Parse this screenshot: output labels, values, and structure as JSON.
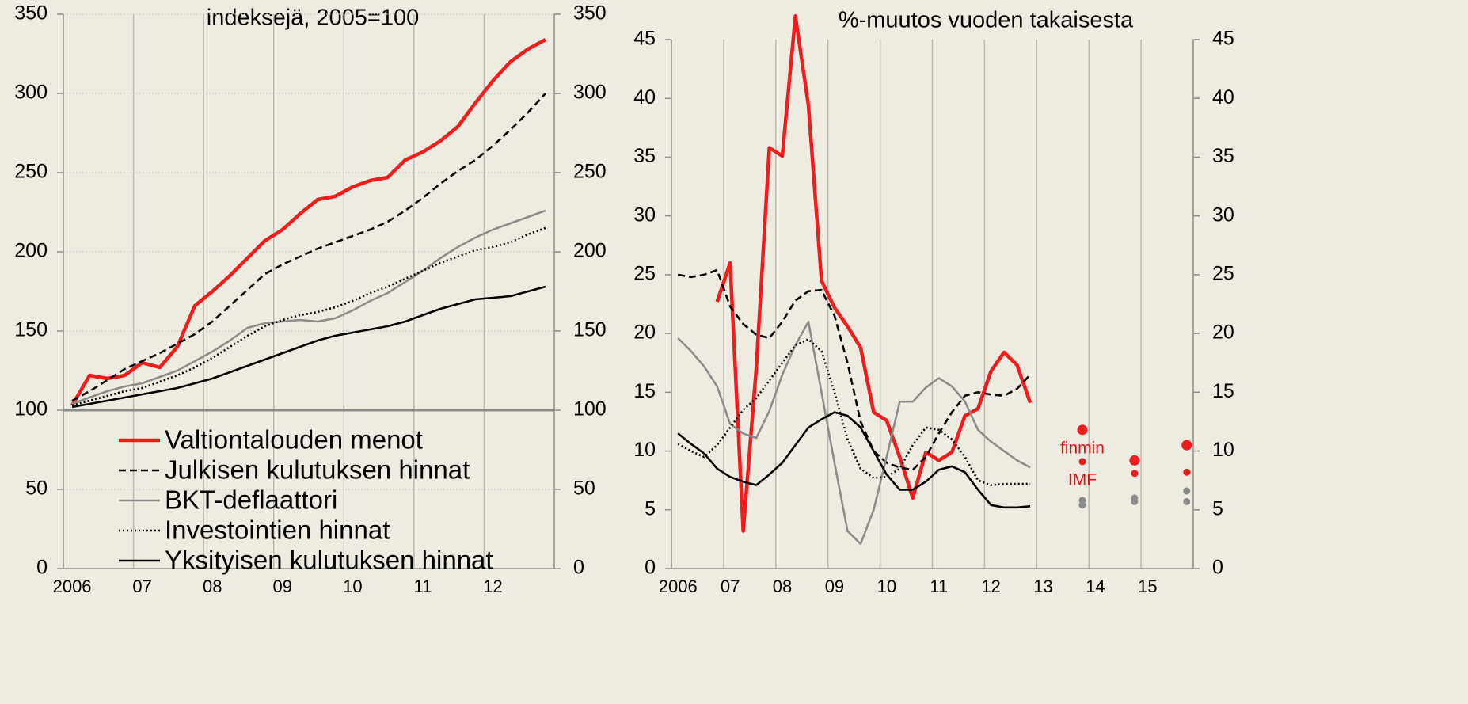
{
  "chart_data": [
    {
      "type": "line",
      "title": "indeksejä, 2005=100",
      "categories": [
        "2006",
        null,
        null,
        null,
        "07",
        null,
        null,
        null,
        "08",
        null,
        null,
        null,
        "09",
        null,
        null,
        null,
        "10",
        null,
        null,
        null,
        "11",
        null,
        null,
        null,
        "12",
        null,
        null,
        null
      ],
      "ylim": [
        0,
        350
      ],
      "yticks": [
        0,
        50,
        100,
        150,
        200,
        250,
        300,
        350
      ],
      "grid": true,
      "baseline": 100,
      "legend": "bottom",
      "series": [
        {
          "name": "Valtiontalouden menot",
          "color": "#f21c1c",
          "style": "solid",
          "width": "thick",
          "values": [
            103,
            122,
            120,
            122,
            130,
            127,
            140,
            166,
            175,
            185,
            196,
            207,
            214,
            224,
            233,
            235,
            241,
            245,
            247,
            258,
            263,
            270,
            279,
            294,
            308,
            320,
            328,
            334
          ]
        },
        {
          "name": "Julkisen kulutuksen hinnat",
          "color": "#000000",
          "style": "dashed",
          "width": "normal",
          "values": [
            106,
            112,
            119,
            126,
            131,
            136,
            142,
            148,
            156,
            166,
            176,
            186,
            192,
            197,
            202,
            206,
            210,
            214,
            219,
            226,
            234,
            243,
            251,
            258,
            267,
            277,
            288,
            300
          ]
        },
        {
          "name": "BKT-deflaattori",
          "color": "#8c8c8c",
          "style": "solid",
          "width": "normal",
          "values": [
            104,
            108,
            112,
            115,
            117,
            121,
            125,
            131,
            137,
            144,
            152,
            155,
            156,
            157,
            156,
            158,
            163,
            169,
            174,
            181,
            188,
            196,
            203,
            209,
            214,
            218,
            222,
            226
          ]
        },
        {
          "name": "Investointien hinnat",
          "color": "#000000",
          "style": "dotted",
          "width": "normal",
          "values": [
            103,
            106,
            109,
            112,
            114,
            118,
            122,
            127,
            133,
            140,
            147,
            153,
            157,
            160,
            162,
            165,
            169,
            174,
            178,
            183,
            188,
            193,
            197,
            201,
            203,
            206,
            211,
            215
          ]
        },
        {
          "name": "Yksityisen kulutuksen hinnat",
          "color": "#000000",
          "style": "solid",
          "width": "normal",
          "values": [
            102,
            104,
            106,
            108,
            110,
            112,
            114,
            117,
            120,
            124,
            128,
            132,
            136,
            140,
            144,
            147,
            149,
            151,
            153,
            156,
            160,
            164,
            167,
            170,
            171,
            172,
            175,
            178
          ]
        }
      ]
    },
    {
      "type": "line",
      "title": "%-muutos vuoden takaisesta",
      "categories": [
        "2006",
        null,
        null,
        null,
        "07",
        null,
        null,
        null,
        "08",
        null,
        null,
        null,
        "09",
        null,
        null,
        null,
        "10",
        null,
        null,
        null,
        "11",
        null,
        null,
        null,
        "12",
        null,
        null,
        null,
        "13",
        null,
        null,
        null,
        "14",
        null,
        null,
        null,
        "15",
        null,
        null,
        null
      ],
      "ylim": [
        0,
        45
      ],
      "yticks": [
        0,
        5,
        10,
        15,
        20,
        25,
        30,
        35,
        40,
        45
      ],
      "grid": false,
      "series": [
        {
          "color": "#f21c1c",
          "style": "solid",
          "width": "thick",
          "values": [
            null,
            null,
            null,
            22.7,
            26,
            3.2,
            17,
            35.8,
            35.1,
            47,
            39.4,
            24.5,
            22.2,
            20.6,
            18.8,
            13.3,
            12.6,
            9.5,
            6,
            9.9,
            9.2,
            9.9,
            13,
            13.6,
            16.8,
            18.4,
            17.3,
            14.1,
            null,
            null,
            null,
            null,
            null,
            null,
            null,
            null,
            null,
            null,
            null,
            null
          ]
        },
        {
          "color": "#000000",
          "style": "dashed",
          "width": "normal",
          "values": [
            25.0,
            24.8,
            25.0,
            25.4,
            22.3,
            20.8,
            19.9,
            19.6,
            21.0,
            22.8,
            23.6,
            23.7,
            21.5,
            17.5,
            12.5,
            10.0,
            9.0,
            8.6,
            8.4,
            9.5,
            11.5,
            13.3,
            14.7,
            15.0,
            14.8,
            14.7,
            15.3,
            16.5,
            null,
            null,
            null,
            null,
            null,
            null,
            null,
            null,
            null,
            null,
            null,
            null
          ]
        },
        {
          "color": "#8c8c8c",
          "style": "solid",
          "width": "normal",
          "values": [
            19.6,
            18.5,
            17.2,
            15.5,
            12.3,
            11.5,
            11.1,
            13.4,
            16.5,
            19,
            21,
            15,
            9,
            3.2,
            2.1,
            5,
            9.5,
            14.2,
            14.2,
            15.4,
            16.2,
            15.5,
            14.2,
            11.8,
            10.8,
            10.0,
            9.2,
            8.6,
            null,
            null,
            null,
            null,
            null,
            null,
            null,
            null,
            null,
            null,
            null,
            null
          ]
        },
        {
          "color": "#000000",
          "style": "dotted",
          "width": "normal",
          "values": [
            10.6,
            10.0,
            9.5,
            10.5,
            12,
            13.5,
            14.5,
            16,
            17.5,
            19,
            19.5,
            18.5,
            15,
            11,
            8.5,
            7.7,
            7.8,
            8.5,
            10.5,
            12,
            11.8,
            11,
            9.5,
            7.5,
            7.1,
            7.2,
            7.2,
            7.2,
            null,
            null,
            null,
            null,
            null,
            null,
            null,
            null,
            null,
            null,
            null,
            null
          ]
        },
        {
          "color": "#000000",
          "style": "solid",
          "width": "normal",
          "values": [
            11.5,
            10.6,
            9.8,
            8.5,
            7.8,
            7.4,
            7.1,
            8,
            9,
            10.5,
            12,
            12.7,
            13.3,
            13,
            12,
            10,
            8,
            6.7,
            6.7,
            7.4,
            8.4,
            8.7,
            8.2,
            6.7,
            5.4,
            5.2,
            5.2,
            5.3,
            null,
            null,
            null,
            null,
            null,
            null,
            null,
            null,
            null,
            null,
            null,
            null
          ]
        },
        {
          "label": "finmin",
          "color": "#f21c1c",
          "marker": "large",
          "values": [
            null,
            null,
            null,
            null,
            null,
            null,
            null,
            null,
            null,
            null,
            null,
            null,
            null,
            null,
            null,
            null,
            null,
            null,
            null,
            null,
            null,
            null,
            null,
            null,
            null,
            null,
            null,
            null,
            null,
            null,
            null,
            11.8,
            null,
            null,
            null,
            9.2,
            null,
            null,
            null,
            10.5
          ]
        },
        {
          "label": "IMF",
          "color": "#f21c1c",
          "marker": "small",
          "values": [
            null,
            null,
            null,
            null,
            null,
            null,
            null,
            null,
            null,
            null,
            null,
            null,
            null,
            null,
            null,
            null,
            null,
            null,
            null,
            null,
            null,
            null,
            null,
            null,
            null,
            null,
            null,
            null,
            null,
            null,
            null,
            9.1,
            null,
            null,
            null,
            8.1,
            null,
            null,
            null,
            8.2
          ]
        },
        {
          "color": "#8c8c8c",
          "marker": "small",
          "values": [
            null,
            null,
            null,
            null,
            null,
            null,
            null,
            null,
            null,
            null,
            null,
            null,
            null,
            null,
            null,
            null,
            null,
            null,
            null,
            null,
            null,
            null,
            null,
            null,
            null,
            null,
            null,
            null,
            null,
            null,
            null,
            5.8,
            null,
            null,
            null,
            6.0,
            null,
            null,
            null,
            6.6
          ]
        },
        {
          "color": "#8c8c8c",
          "marker": "small",
          "values": [
            null,
            null,
            null,
            null,
            null,
            null,
            null,
            null,
            null,
            null,
            null,
            null,
            null,
            null,
            null,
            null,
            null,
            null,
            null,
            null,
            null,
            null,
            null,
            null,
            null,
            null,
            null,
            null,
            null,
            null,
            null,
            5.4,
            null,
            null,
            null,
            5.7,
            null,
            null,
            null,
            5.7
          ]
        }
      ]
    }
  ]
}
